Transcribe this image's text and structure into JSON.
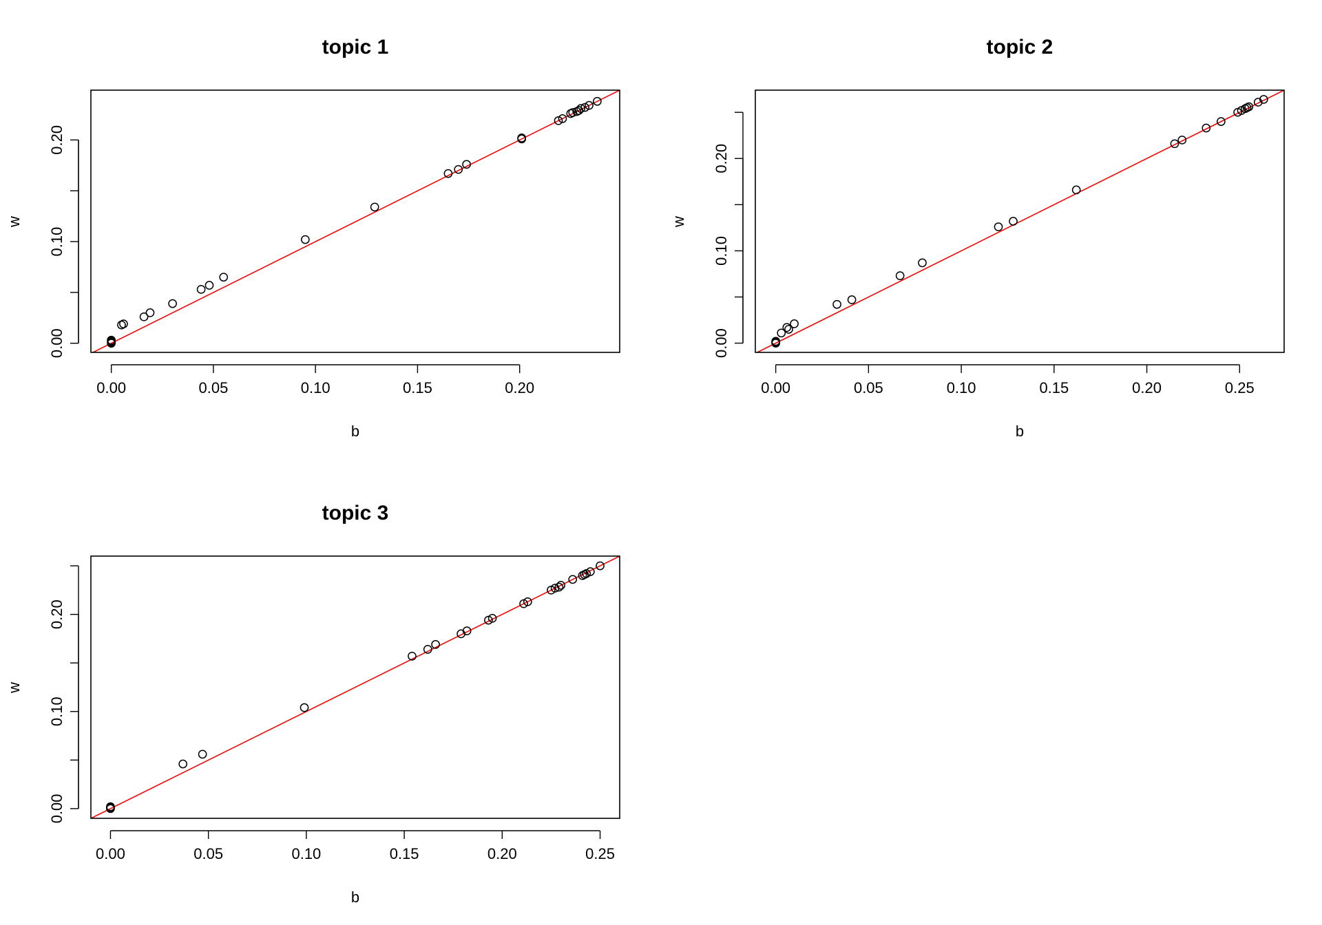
{
  "colors": {
    "points": "#000000",
    "reference_line": "#ff0000",
    "background": "#ffffff"
  },
  "chart_data": [
    {
      "type": "scatter",
      "title": "topic 1",
      "xlabel": "b",
      "ylabel": "w",
      "xlim": [
        -0.01,
        0.249
      ],
      "ylim": [
        -0.009,
        0.249
      ],
      "xticks": [
        0.0,
        0.05,
        0.1,
        0.15,
        0.2
      ],
      "yticks": [
        0.0,
        0.1,
        0.2
      ],
      "xtick_labels": [
        "0.00",
        "0.05",
        "0.10",
        "0.15",
        "0.20"
      ],
      "ytick_labels": [
        "0.00",
        "0.10",
        "0.20"
      ],
      "reference_line": {
        "intercept": 0,
        "slope": 1
      },
      "grid": false,
      "points": [
        [
          0.0,
          0.0
        ],
        [
          0.0,
          0.001
        ],
        [
          0.0,
          0.002
        ],
        [
          0.0,
          0.003
        ],
        [
          0.005,
          0.018
        ],
        [
          0.006,
          0.019
        ],
        [
          0.016,
          0.026
        ],
        [
          0.019,
          0.03
        ],
        [
          0.03,
          0.039
        ],
        [
          0.044,
          0.053
        ],
        [
          0.048,
          0.057
        ],
        [
          0.055,
          0.065
        ],
        [
          0.095,
          0.102
        ],
        [
          0.129,
          0.134
        ],
        [
          0.165,
          0.167
        ],
        [
          0.17,
          0.171
        ],
        [
          0.174,
          0.176
        ],
        [
          0.201,
          0.201
        ],
        [
          0.201,
          0.202
        ],
        [
          0.219,
          0.219
        ],
        [
          0.221,
          0.221
        ],
        [
          0.225,
          0.226
        ],
        [
          0.226,
          0.227
        ],
        [
          0.228,
          0.228
        ],
        [
          0.229,
          0.229
        ],
        [
          0.23,
          0.231
        ],
        [
          0.232,
          0.232
        ],
        [
          0.234,
          0.234
        ],
        [
          0.238,
          0.238
        ]
      ]
    },
    {
      "type": "scatter",
      "title": "topic 2",
      "xlabel": "b",
      "ylabel": "w",
      "xlim": [
        -0.011,
        0.274
      ],
      "ylim": [
        -0.01,
        0.274
      ],
      "xticks": [
        0.0,
        0.05,
        0.1,
        0.15,
        0.2,
        0.25
      ],
      "yticks": [
        0.0,
        0.1,
        0.2
      ],
      "xtick_labels": [
        "0.00",
        "0.05",
        "0.10",
        "0.15",
        "0.20",
        "0.25"
      ],
      "ytick_labels": [
        "0.00",
        "0.10",
        "0.20"
      ],
      "reference_line": {
        "intercept": 0,
        "slope": 1
      },
      "grid": false,
      "points": [
        [
          0.0,
          0.0
        ],
        [
          0.0,
          0.001
        ],
        [
          0.0,
          0.002
        ],
        [
          0.003,
          0.011
        ],
        [
          0.006,
          0.017
        ],
        [
          0.007,
          0.015
        ],
        [
          0.01,
          0.021
        ],
        [
          0.033,
          0.042
        ],
        [
          0.041,
          0.047
        ],
        [
          0.067,
          0.073
        ],
        [
          0.079,
          0.087
        ],
        [
          0.12,
          0.126
        ],
        [
          0.128,
          0.132
        ],
        [
          0.162,
          0.166
        ],
        [
          0.215,
          0.216
        ],
        [
          0.219,
          0.22
        ],
        [
          0.232,
          0.233
        ],
        [
          0.24,
          0.24
        ],
        [
          0.249,
          0.25
        ],
        [
          0.251,
          0.252
        ],
        [
          0.253,
          0.254
        ],
        [
          0.254,
          0.255
        ],
        [
          0.255,
          0.256
        ],
        [
          0.26,
          0.261
        ],
        [
          0.263,
          0.264
        ]
      ]
    },
    {
      "type": "scatter",
      "title": "topic 3",
      "xlabel": "b",
      "ylabel": "w",
      "xlim": [
        -0.01,
        0.26
      ],
      "ylim": [
        -0.01,
        0.26
      ],
      "xticks": [
        0.0,
        0.05,
        0.1,
        0.15,
        0.2,
        0.25
      ],
      "yticks": [
        0.0,
        0.1,
        0.2
      ],
      "xtick_labels": [
        "0.00",
        "0.05",
        "0.10",
        "0.15",
        "0.20",
        "0.25"
      ],
      "ytick_labels": [
        "0.00",
        "0.10",
        "0.20"
      ],
      "reference_line": {
        "intercept": 0,
        "slope": 1
      },
      "grid": false,
      "points": [
        [
          0.0,
          0.0
        ],
        [
          0.0,
          0.001
        ],
        [
          0.0,
          0.002
        ],
        [
          0.037,
          0.046
        ],
        [
          0.047,
          0.056
        ],
        [
          0.099,
          0.104
        ],
        [
          0.154,
          0.157
        ],
        [
          0.162,
          0.164
        ],
        [
          0.166,
          0.169
        ],
        [
          0.179,
          0.18
        ],
        [
          0.182,
          0.183
        ],
        [
          0.193,
          0.194
        ],
        [
          0.195,
          0.196
        ],
        [
          0.211,
          0.211
        ],
        [
          0.213,
          0.213
        ],
        [
          0.225,
          0.225
        ],
        [
          0.227,
          0.227
        ],
        [
          0.229,
          0.228
        ],
        [
          0.23,
          0.23
        ],
        [
          0.236,
          0.236
        ],
        [
          0.241,
          0.24
        ],
        [
          0.242,
          0.241
        ],
        [
          0.243,
          0.242
        ],
        [
          0.245,
          0.244
        ],
        [
          0.25,
          0.25
        ]
      ]
    }
  ]
}
